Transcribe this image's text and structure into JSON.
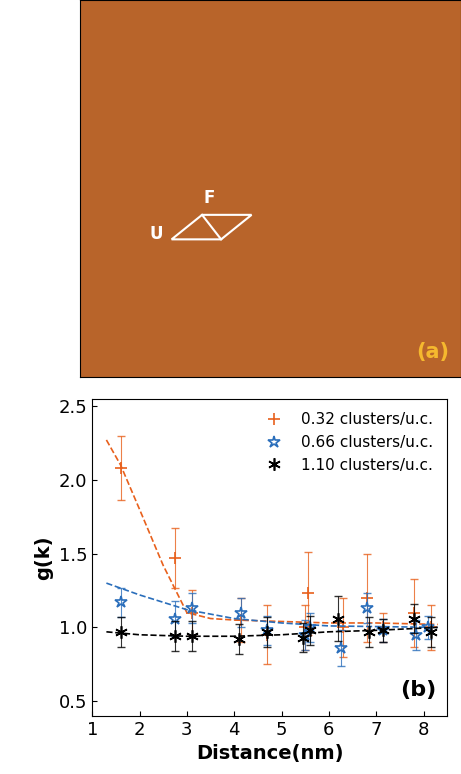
{
  "image_panel": {
    "label": "(a)",
    "annotations": [
      "U",
      "F"
    ]
  },
  "chart_data": {
    "type": "scatter",
    "label": "(b)",
    "x_label": "Distance(nm)",
    "y_label": "g(k)",
    "xlim": [
      1,
      8.5
    ],
    "xticks": [
      1,
      2,
      3,
      4,
      5,
      6,
      7,
      8
    ],
    "ylim": [
      0.4,
      2.55
    ],
    "yticks": [
      0.5,
      1.0,
      1.5,
      2.0,
      2.5
    ],
    "legend": "upper right",
    "grid": false,
    "series": [
      {
        "name": "0.32 clusters/u.c.",
        "color": "#e8601c",
        "marker": "plus",
        "x": [
          1.6,
          2.75,
          3.1,
          4.15,
          4.7,
          5.5,
          5.55,
          6.3,
          6.8,
          7.15,
          7.8,
          8.15
        ],
        "values": [
          2.08,
          1.47,
          1.1,
          1.05,
          0.95,
          1.0,
          1.23,
          1.0,
          1.2,
          1.0,
          1.1,
          1.0
        ],
        "errors": [
          0.22,
          0.2,
          0.15,
          0.15,
          0.2,
          0.15,
          0.28,
          0.2,
          0.3,
          0.1,
          0.23,
          0.15
        ],
        "fit": {
          "line_style": "dashed",
          "x": [
            1.3,
            1.6,
            2.0,
            2.5,
            3.0,
            3.5,
            4.0,
            5.0,
            6.0,
            7.0,
            8.3
          ],
          "values": [
            2.27,
            2.1,
            1.8,
            1.42,
            1.1,
            1.06,
            1.05,
            1.04,
            1.03,
            1.03,
            1.02
          ]
        }
      },
      {
        "name": "0.66 clusters/u.c.",
        "color": "#2a6ebb",
        "marker": "star",
        "x": [
          1.6,
          2.75,
          3.1,
          4.15,
          4.7,
          5.5,
          5.6,
          6.25,
          6.8,
          7.15,
          7.85,
          8.1
        ],
        "values": [
          1.17,
          1.06,
          1.13,
          1.1,
          0.98,
          0.95,
          1.0,
          0.86,
          1.13,
          0.98,
          0.95,
          1.0
        ],
        "errors": [
          0.1,
          0.12,
          0.1,
          0.1,
          0.1,
          0.1,
          0.1,
          0.12,
          0.1,
          0.08,
          0.1,
          0.08
        ],
        "fit": {
          "line_style": "dashed",
          "x": [
            1.3,
            2.0,
            3.0,
            4.0,
            5.0,
            6.0,
            8.3
          ],
          "values": [
            1.3,
            1.22,
            1.12,
            1.06,
            1.03,
            1.01,
            1.0
          ]
        }
      },
      {
        "name": "1.10 clusters/u.c.",
        "color": "#000000",
        "marker": "asterisk",
        "x": [
          1.6,
          2.75,
          3.1,
          4.1,
          4.7,
          5.45,
          5.6,
          6.2,
          6.85,
          7.15,
          7.8,
          8.15
        ],
        "values": [
          0.97,
          0.94,
          0.94,
          0.92,
          0.97,
          0.93,
          0.98,
          1.06,
          0.97,
          0.98,
          1.06,
          0.97
        ],
        "errors": [
          0.1,
          0.1,
          0.1,
          0.1,
          0.1,
          0.1,
          0.1,
          0.15,
          0.1,
          0.08,
          0.1,
          0.1
        ],
        "fit": {
          "line_style": "dashed",
          "x": [
            1.3,
            2.0,
            3.0,
            4.0,
            5.0,
            6.0,
            7.0,
            8.3
          ],
          "values": [
            0.97,
            0.95,
            0.94,
            0.94,
            0.95,
            0.97,
            0.98,
            1.0
          ]
        }
      }
    ]
  }
}
